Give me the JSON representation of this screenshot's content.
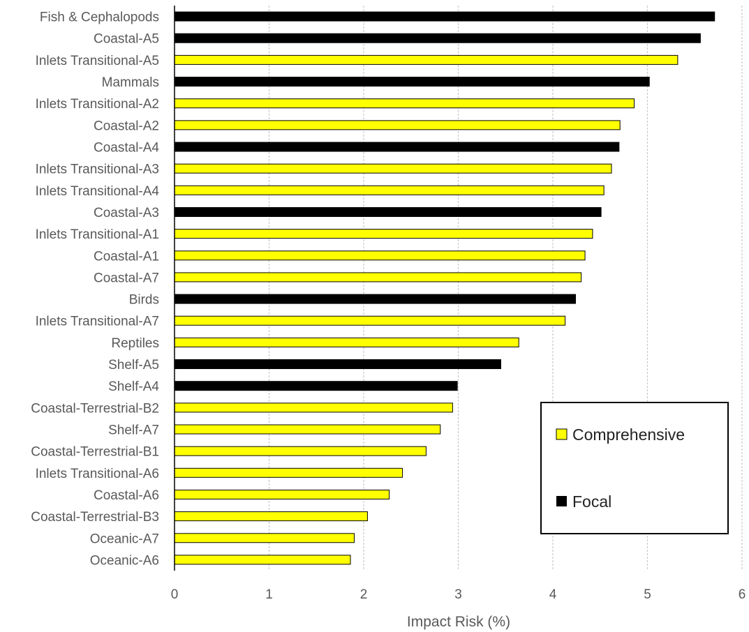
{
  "chart_data": {
    "type": "bar",
    "orientation": "horizontal",
    "xlabel": "Impact Risk (%)",
    "ylabel": "",
    "xlim": [
      0,
      6
    ],
    "xticks": [
      "0",
      "1",
      "2",
      "3",
      "4",
      "5",
      "6"
    ],
    "grid": "vertical dashed",
    "legend_position": "bottom-right",
    "series": [
      {
        "name": "Comprehensive",
        "color": "#ffff00"
      },
      {
        "name": "Focal",
        "color": "#000000"
      }
    ],
    "categories": [
      "Fish & Cephalopods",
      "Coastal-A5",
      "Inlets Transitional-A5",
      "Mammals",
      "Inlets Transitional-A2",
      "Coastal-A2",
      "Coastal-A4",
      "Inlets Transitional-A3",
      "Inlets Transitional-A4",
      "Coastal-A3",
      "Inlets Transitional-A1",
      "Coastal-A1",
      "Coastal-A7",
      "Birds",
      "Inlets Transitional-A7",
      "Reptiles",
      "Shelf-A5",
      "Shelf-A4",
      "Coastal-Terrestrial-B2",
      "Shelf-A7",
      "Coastal-Terrestrial-B1",
      "Inlets Transitional-A6",
      "Coastal-A6",
      "Coastal-Terrestrial-B3",
      "Oceanic-A7",
      "Oceanic-A6"
    ],
    "values": [
      5.71,
      5.56,
      5.32,
      5.02,
      4.86,
      4.71,
      4.7,
      4.62,
      4.54,
      4.51,
      4.42,
      4.34,
      4.3,
      4.24,
      4.13,
      3.64,
      3.45,
      2.99,
      2.94,
      2.81,
      2.66,
      2.41,
      2.27,
      2.04,
      1.9,
      1.86
    ],
    "series_index": [
      1,
      1,
      0,
      1,
      0,
      0,
      1,
      0,
      0,
      1,
      0,
      0,
      0,
      1,
      0,
      0,
      1,
      1,
      0,
      0,
      0,
      0,
      0,
      0,
      0,
      0
    ]
  }
}
